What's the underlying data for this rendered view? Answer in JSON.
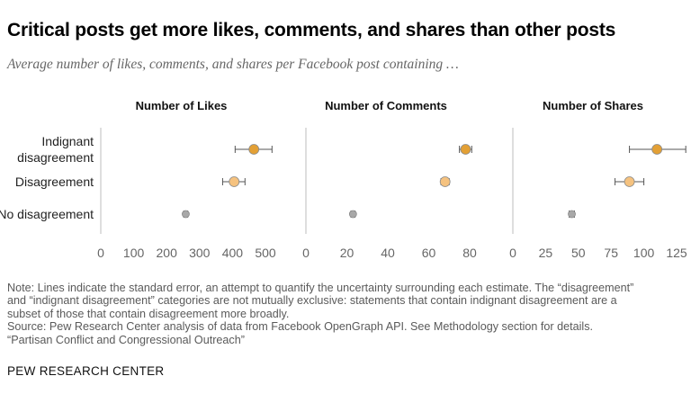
{
  "title": "Critical posts get more likes, comments, and shares than other posts",
  "subtitle": "Average number of likes, comments, and shares per Facebook post containing …",
  "notes": [
    "Note: Lines indicate the standard error, an attempt to quantify the uncertainty surrounding each estimate. The “disagreement”",
    "and “indignant disagreement” categories are not mutually exclusive: statements that contain indignant disagreement are a",
    "subset of those that contain disagreement more broadly.",
    "Source: Pew Research Center analysis of data from Facebook OpenGraph API. See Methodology section for details.",
    "“Partisan Conflict and Congressional Outreach”"
  ],
  "footer": "PEW RESEARCH CENTER",
  "colors": {
    "indignant": "#e3a035",
    "disagreement": "#f5c27f",
    "none": "#a8a8a8",
    "error_bar": "#555555",
    "axis": "#bdbdbd",
    "tick_text": "#666666"
  },
  "chart_data": [
    {
      "type": "scatter",
      "title": "Number of Likes",
      "categories": [
        "Indignant disagreement",
        "Disagreement",
        "No disagreement"
      ],
      "category_labels": [
        [
          "Indignant",
          "disagreement"
        ],
        [
          "Disagreement"
        ],
        [
          "No disagreement"
        ]
      ],
      "values": [
        465,
        405,
        258
      ],
      "error_low": [
        408,
        370,
        252
      ],
      "error_high": [
        520,
        438,
        264
      ],
      "xlim": [
        0,
        500
      ],
      "xticks": [
        0,
        100,
        200,
        300,
        400,
        500
      ]
    },
    {
      "type": "scatter",
      "title": "Number of Comments",
      "categories": [
        "Indignant disagreement",
        "Disagreement",
        "No disagreement"
      ],
      "values": [
        78,
        68,
        23
      ],
      "error_low": [
        75,
        66,
        22
      ],
      "error_high": [
        81,
        70,
        24
      ],
      "xlim": [
        0,
        80
      ],
      "xticks": [
        0,
        20,
        40,
        60,
        80
      ]
    },
    {
      "type": "scatter",
      "title": "Number of Shares",
      "categories": [
        "Indignant disagreement",
        "Disagreement",
        "No disagreement"
      ],
      "values": [
        110,
        89,
        45
      ],
      "error_low": [
        89,
        78,
        43
      ],
      "error_high": [
        132,
        100,
        47
      ],
      "xlim": [
        0,
        125
      ],
      "xticks": [
        0,
        25,
        50,
        75,
        100,
        125
      ]
    }
  ]
}
